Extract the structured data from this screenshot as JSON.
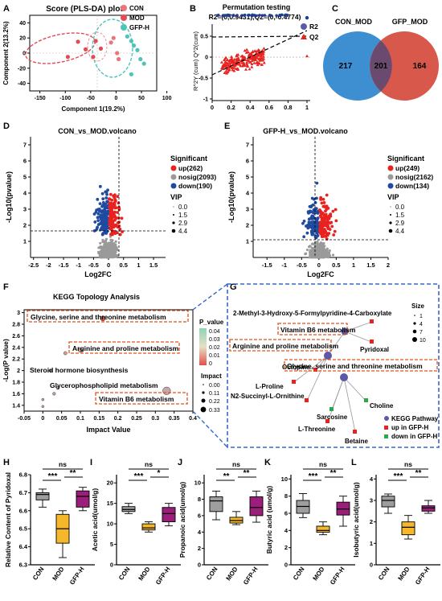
{
  "colors": {
    "con": "#e8767a",
    "mod": "#e14b55",
    "gfp": "#4ec3b9",
    "up": "#e8231f",
    "down": "#1f4aa0",
    "nosig": "#9a9a9a",
    "venn_left": "#3d8fd1",
    "venn_right": "#d8584c",
    "box_con": "#9e9e9e",
    "box_mod": "#f5b82a",
    "box_gfp": "#9b1f7a",
    "kegg_box": "#e0531f",
    "dash_blue": "#3568c9"
  },
  "panelA": {
    "letter": "A",
    "title": "Score (PLS-DA) plot",
    "xlabel": "Component 1(19.2%)",
    "ylabel": "Component 2(13.2%)",
    "xticks": [
      "-150",
      "-100",
      "-50",
      "0",
      "50",
      "100"
    ],
    "yticks": [
      "40",
      "20",
      "0",
      "-20",
      "-40"
    ],
    "legend": [
      "CON",
      "MOD",
      "GFP-H"
    ],
    "points": {
      "con": [
        [
          -10,
          14
        ],
        [
          -5,
          20
        ],
        [
          2,
          0
        ],
        [
          5,
          -8
        ]
      ],
      "mod": [
        [
          -95,
          -5
        ],
        [
          -75,
          15
        ],
        [
          -60,
          5
        ],
        [
          -45,
          -5
        ],
        [
          -40,
          16
        ],
        [
          -30,
          6
        ]
      ],
      "gfp": [
        [
          22,
          22
        ],
        [
          30,
          16
        ],
        [
          35,
          10
        ],
        [
          42,
          4
        ],
        [
          48,
          -8
        ],
        [
          55,
          -14
        ],
        [
          30,
          -28
        ]
      ]
    }
  },
  "panelB": {
    "letter": "B",
    "title": "Permutation testing",
    "subtitle": "R2=(0,0.9431),Q2=(0,-0.4774)",
    "ylabel": "R^2Y (cum) Q^2(cum)",
    "xticks": [
      "0",
      "0.2",
      "0.4",
      "0.6",
      "0.8",
      "1"
    ],
    "yticks": [
      "1",
      "0.5",
      "0",
      "-0.5",
      "-1"
    ],
    "legend": [
      "R2",
      "Q2"
    ]
  },
  "panelC": {
    "letter": "C",
    "left_label": "CON_MOD",
    "right_label": "GFP_MOD",
    "left_only": "217",
    "both": "201",
    "right_only": "164"
  },
  "panelD": {
    "letter": "D",
    "title": "CON_vs_MOD.volcano",
    "xlabel": "Log2FC",
    "ylabel": "-Log10(pvalue)",
    "xticks": [
      "-2.5",
      "-2",
      "-1.5",
      "-1",
      "-0.5",
      "0",
      "0.5",
      "1",
      "1.5"
    ],
    "yticks": [
      "1",
      "2",
      "3",
      "4",
      "5",
      "6",
      "7"
    ],
    "legend_title": "Significant",
    "legend": [
      "up(262)",
      "nosig(2093)",
      "down(190)"
    ],
    "vip_title": "VIP",
    "vip": [
      "0.0",
      "1.5",
      "2.9",
      "4.4"
    ]
  },
  "panelE": {
    "letter": "E",
    "title": "GFP-H_vs_MOD.volcano",
    "xlabel": "Log2FC",
    "ylabel": "-Log10(pvalue)",
    "xticks": [
      "-1.5",
      "-1",
      "-0.5",
      "0",
      "0.5",
      "1",
      "1.5",
      "2"
    ],
    "yticks": [
      "1",
      "2",
      "3",
      "4",
      "5",
      "6",
      "7"
    ],
    "legend_title": "Significant",
    "legend": [
      "up(249)",
      "nosig(2162)",
      "down(134)"
    ],
    "vip_title": "VIP",
    "vip": [
      "0.0",
      "1.5",
      "2.9",
      "4.4"
    ]
  },
  "panelF": {
    "letter": "F",
    "title": "KEGG Topology Analysis",
    "xlabel": "Impact Value",
    "ylabel": "-Log(P value)",
    "xticks": [
      "-0.05",
      "0",
      "0.05",
      "0.1",
      "0.15",
      "0.2",
      "0.25",
      "0.3",
      "0.35",
      "0.4"
    ],
    "yticks": [
      "1.4",
      "1.6",
      "1.8",
      "2",
      "2.2",
      "2.4",
      "2.6",
      "2.8",
      "3"
    ],
    "pvalue_title": "P_value",
    "pvalue_ticks": [
      "0.04",
      "0.03",
      "0.02",
      "0.01",
      "0"
    ],
    "impact_title": "Impact",
    "impact_ticks": [
      "0.00",
      "0.11",
      "0.22",
      "0.33"
    ],
    "labels": [
      "Glycine, serine and threonine metabolism",
      "Arginine and proline metabolism",
      "Steroid hormone biosynthesis",
      "Glycerophospholipid metabolism",
      "Vitamin B6 metabolism"
    ],
    "points": [
      [
        0.16,
        2.9
      ],
      [
        0.1,
        2.35
      ],
      [
        0.06,
        2.3
      ],
      [
        0.02,
        2.0
      ],
      [
        0.04,
        1.7
      ],
      [
        0.03,
        1.6
      ],
      [
        0.0,
        1.5
      ],
      [
        0.33,
        1.65
      ],
      [
        0.0,
        1.38
      ]
    ]
  },
  "panelG": {
    "letter": "G",
    "metabolites": [
      "2-Methyl-3-Hydroxy-5-Formylpyridine-4-Carboxylate",
      "Pyridoxal",
      "Octopine",
      "L-Proline",
      "N2-Succinyl-L-Ornithine",
      "Sarcosine",
      "L-Threonine",
      "Choline",
      "Betaine"
    ],
    "pathways": [
      "Vitamin B6 metabolism",
      "Arginine and proline metabolism",
      "Glycine, serine and threonine metabolism"
    ],
    "size_title": "Size",
    "size_ticks": [
      "1",
      "4",
      "7",
      "10"
    ],
    "legend": [
      "KEGG Pathway",
      "up in GFP-H",
      "down in GFP-H"
    ]
  },
  "boxes": [
    {
      "letter": "H",
      "ylabel": "Relative Content of Pyridoxal",
      "yticks": [
        "6.3",
        "6.4",
        "6.5",
        "6.6",
        "6.7",
        "6.8"
      ],
      "sig": [
        "***",
        "**",
        "ns"
      ],
      "categories": [
        "CON",
        "MOD",
        "GFP-H"
      ],
      "ymin": 6.3,
      "ymax": 6.8,
      "stats": [
        [
          6.62,
          6.66,
          6.69,
          6.7,
          6.72
        ],
        [
          6.34,
          6.42,
          6.5,
          6.58,
          6.6
        ],
        [
          6.6,
          6.62,
          6.68,
          6.71,
          6.73
        ]
      ]
    },
    {
      "letter": "I",
      "ylabel": "Acetic acid(umol/g)",
      "yticks": [
        "0",
        "5",
        "10",
        "15",
        "20"
      ],
      "sig": [
        "***",
        "*",
        "ns"
      ],
      "categories": [
        "CON",
        "MOD",
        "GFP-H"
      ],
      "ymin": 0,
      "ymax": 22,
      "stats": [
        [
          12.5,
          13,
          13.5,
          14.2,
          15
        ],
        [
          8,
          8.5,
          9,
          10,
          10.5
        ],
        [
          9.5,
          10.5,
          12.5,
          14,
          15
        ]
      ]
    },
    {
      "letter": "J",
      "ylabel": "Propanoic acid(umol/g)",
      "yticks": [
        "0",
        "2",
        "4",
        "6",
        "8",
        "10"
      ],
      "sig": [
        "**",
        "**",
        "ns"
      ],
      "categories": [
        "CON",
        "MOD",
        "GFP-H"
      ],
      "ymin": 0,
      "ymax": 11,
      "stats": [
        [
          5.5,
          6.5,
          7.8,
          8.3,
          9
        ],
        [
          4.9,
          5.1,
          5.4,
          5.8,
          6.5
        ],
        [
          5.2,
          6,
          7,
          8.3,
          9
        ]
      ]
    },
    {
      "letter": "K",
      "ylabel": "Butyric acid (umol/g)",
      "yticks": [
        "0",
        "2",
        "4",
        "6",
        "8",
        "10"
      ],
      "sig": [
        "***",
        "**",
        "ns"
      ],
      "categories": [
        "CON",
        "MOD",
        "GFP-H"
      ],
      "ymin": 0,
      "ymax": 10.5,
      "stats": [
        [
          5.5,
          6,
          6.8,
          7.5,
          8.3
        ],
        [
          3.5,
          3.8,
          4,
          4.5,
          5
        ],
        [
          4.5,
          5.8,
          6.5,
          7.3,
          8
        ]
      ]
    },
    {
      "letter": "L",
      "ylabel": "Isobutyric acid(umol/g)",
      "yticks": [
        "0",
        "1",
        "2",
        "3",
        "4"
      ],
      "sig": [
        "***",
        "**",
        "ns"
      ],
      "categories": [
        "CON",
        "MOD",
        "GFP-H"
      ],
      "ymin": 0,
      "ymax": 4.2,
      "stats": [
        [
          2.4,
          2.7,
          3,
          3.2,
          3.3
        ],
        [
          1.2,
          1.4,
          1.75,
          2.0,
          2.3
        ],
        [
          2.4,
          2.5,
          2.65,
          2.75,
          3.0
        ]
      ]
    }
  ],
  "chart_data": [
    {
      "type": "scatter",
      "title": "Score (PLS-DA) plot",
      "xlabel": "Component 1(19.2%)",
      "ylabel": "Component 2(13.2%)",
      "series": [
        {
          "name": "CON"
        },
        {
          "name": "MOD"
        },
        {
          "name": "GFP-H"
        }
      ]
    },
    {
      "type": "scatter",
      "title": "Permutation testing",
      "series": [
        {
          "name": "R2"
        },
        {
          "name": "Q2"
        }
      ]
    },
    {
      "type": "scatter",
      "title": "CON_vs_MOD.volcano",
      "xlabel": "Log2FC",
      "ylabel": "-Log10(pvalue)",
      "series": [
        {
          "name": "up(262)"
        },
        {
          "name": "nosig(2093)"
        },
        {
          "name": "down(190)"
        }
      ]
    },
    {
      "type": "scatter",
      "title": "GFP-H_vs_MOD.volcano",
      "xlabel": "Log2FC",
      "ylabel": "-Log10(pvalue)",
      "series": [
        {
          "name": "up(249)"
        },
        {
          "name": "nosig(2162)"
        },
        {
          "name": "down(134)"
        }
      ]
    },
    {
      "type": "scatter",
      "title": "KEGG Topology Analysis",
      "xlabel": "Impact Value",
      "ylabel": "-Log(P value)"
    },
    {
      "type": "bar",
      "categories": [
        "CON",
        "MOD",
        "GFP-H"
      ],
      "ylabel": "Relative Content of Pyridoxal",
      "values": [
        6.69,
        6.5,
        6.68
      ]
    },
    {
      "type": "bar",
      "categories": [
        "CON",
        "MOD",
        "GFP-H"
      ],
      "ylabel": "Acetic acid(umol/g)",
      "values": [
        13.5,
        9,
        12.5
      ]
    },
    {
      "type": "bar",
      "categories": [
        "CON",
        "MOD",
        "GFP-H"
      ],
      "ylabel": "Propanoic acid(umol/g)",
      "values": [
        7.8,
        5.4,
        7
      ]
    },
    {
      "type": "bar",
      "categories": [
        "CON",
        "MOD",
        "GFP-H"
      ],
      "ylabel": "Butyric acid (umol/g)",
      "values": [
        6.8,
        4,
        6.5
      ]
    },
    {
      "type": "bar",
      "categories": [
        "CON",
        "MOD",
        "GFP-H"
      ],
      "ylabel": "Isobutyric acid(umol/g)",
      "values": [
        3,
        1.75,
        2.65
      ]
    }
  ]
}
